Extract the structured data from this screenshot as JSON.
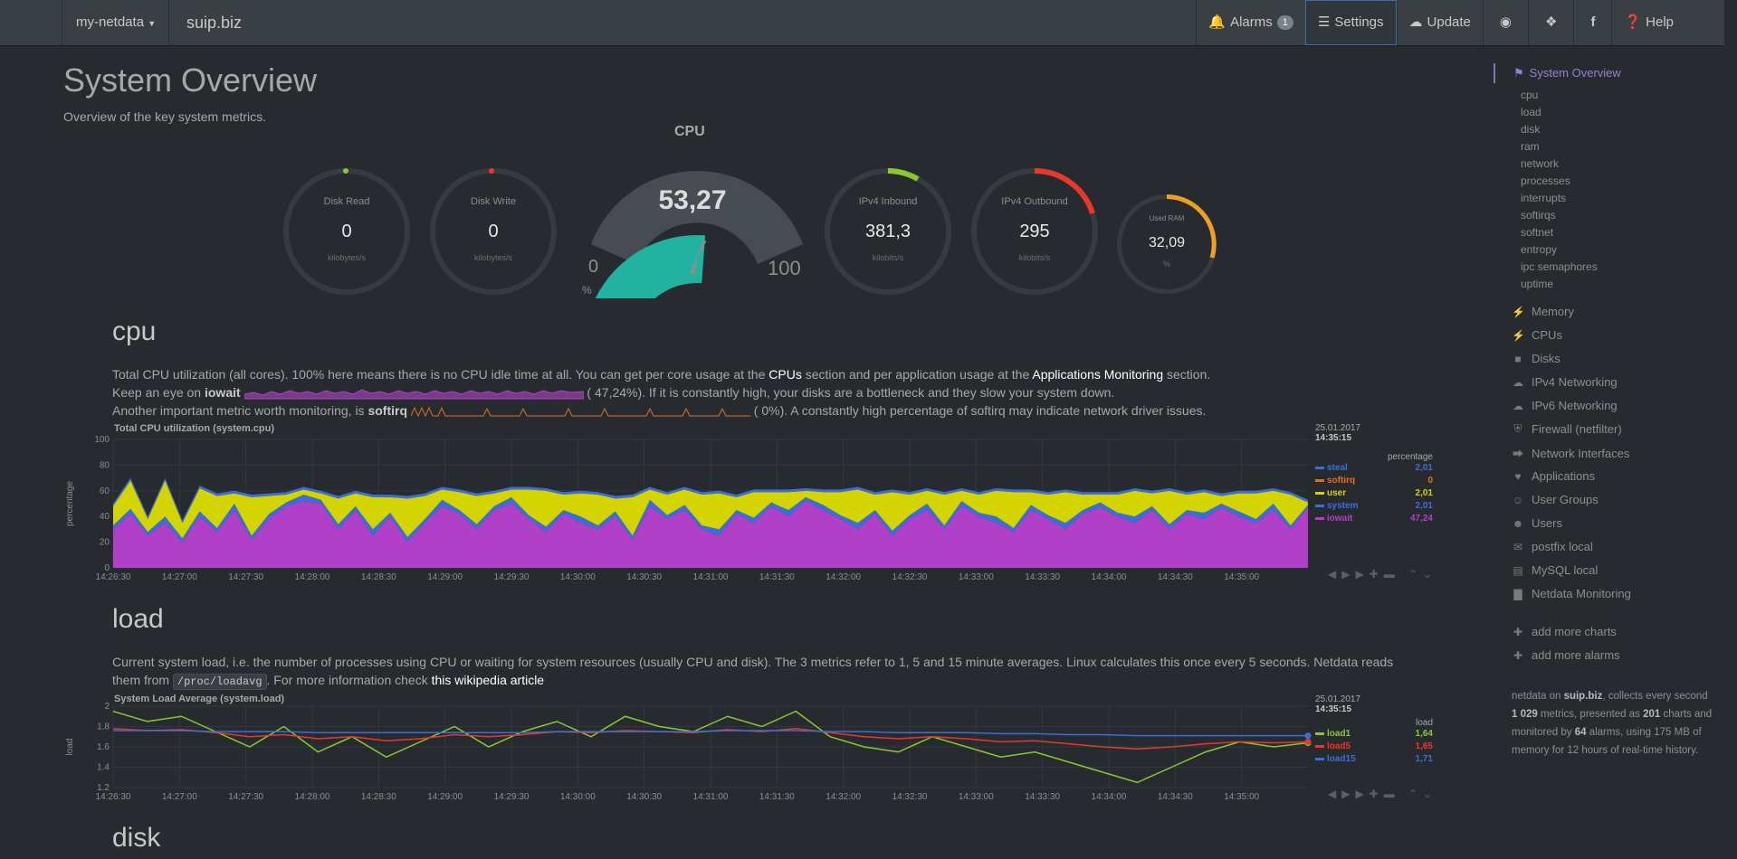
{
  "navbar": {
    "brand": "my-netdata",
    "host": "suip.biz",
    "alarms_label": "Alarms",
    "alarms_count": "1",
    "settings_label": "Settings",
    "update_label": "Update",
    "help_label": "Help"
  },
  "page": {
    "title": "System Overview",
    "subtitle": "Overview of the key system metrics."
  },
  "gauges": {
    "disk_read": {
      "label": "Disk Read",
      "value": "0",
      "unit": "kilobytes/s"
    },
    "disk_write": {
      "label": "Disk Write",
      "value": "0",
      "unit": "kilobytes/s"
    },
    "cpu": {
      "title": "CPU",
      "value": "53,27",
      "min": "0",
      "max": "100",
      "unit": "%",
      "fraction": 0.5327
    },
    "ipv4_inbound": {
      "label": "IPv4 Inbound",
      "value": "381,3",
      "unit": "kilobits/s"
    },
    "ipv4_outbound": {
      "label": "IPv4 Outbound",
      "value": "295",
      "unit": "kilobits/s"
    },
    "used_ram": {
      "label": "Used RAM",
      "value": "32,09",
      "unit": "%"
    }
  },
  "cpu_section": {
    "title": "cpu",
    "line1_a": "Total CPU utilization (all cores). 100% here means there is no CPU idle time at all. You can get per core usage at the ",
    "line1_link1": "CPUs",
    "line1_b": " section and per application usage at the ",
    "line1_link2": "Applications Monitoring",
    "line1_c": " section.",
    "line2_a": "Keep an eye on ",
    "line2_bold": "iowait",
    "line2_val": "47,24%",
    "line2_b": "). If it is constantly high, your disks are a bottleneck and they slow your system down.",
    "line3_a": "Another important metric worth monitoring, is ",
    "line3_bold": "softirq",
    "line3_val": "0%",
    "line3_b": "). A constantly high percentage of softirq may indicate network driver issues.",
    "chart_title": "Total CPU utilization (system.cpu)",
    "ylabel": "percentage",
    "date": "25.01.2017",
    "time": "14:35:15",
    "legend_unit": "percentage",
    "legend": [
      {
        "name": "steal",
        "value": "2,01",
        "color": "#3a6fd8"
      },
      {
        "name": "softirq",
        "value": "0",
        "color": "#e07020"
      },
      {
        "name": "user",
        "value": "2,01",
        "color": "#d4d400"
      },
      {
        "name": "system",
        "value": "2,01",
        "color": "#3a6fd8"
      },
      {
        "name": "iowait",
        "value": "47,24",
        "color": "#b040c8"
      }
    ]
  },
  "load_section": {
    "title": "load",
    "line1": "Current system load, i.e. the number of processes using CPU or waiting for system resources (usually CPU and disk). The 3 metrics refer to 1, 5 and 15 minute averages. Linux calculates this once every 5 seconds. Netdata reads",
    "line2_a": "them from ",
    "line2_code": "/proc/loadavg",
    "line2_b": ". For more information check ",
    "line2_link": "this wikipedia article",
    "chart_title": "System Load Average (system.load)",
    "ylabel": "load",
    "date": "25.01.2017",
    "time": "14:35:15",
    "legend_unit": "load",
    "legend": [
      {
        "name": "load1",
        "value": "1,64",
        "color": "#8ac832"
      },
      {
        "name": "load5",
        "value": "1,65",
        "color": "#e8382a"
      },
      {
        "name": "load15",
        "value": "1,71",
        "color": "#3a6fd8"
      }
    ]
  },
  "disk_section": {
    "title": "disk"
  },
  "chart_data": [
    {
      "type": "area",
      "title": "Total CPU utilization (system.cpu)",
      "ylabel": "percentage",
      "ylim": [
        0,
        100
      ],
      "yticks": [
        "100",
        "80",
        "60",
        "40",
        "20",
        "0"
      ],
      "xticks": [
        "14:26:30",
        "14:27:00",
        "14:27:30",
        "14:28:00",
        "14:28:30",
        "14:29:00",
        "14:29:30",
        "14:30:00",
        "14:30:30",
        "14:31:00",
        "14:31:30",
        "14:32:00",
        "14:32:30",
        "14:33:00",
        "14:33:30",
        "14:34:00",
        "14:34:30",
        "14:35:00"
      ],
      "series": [
        {
          "name": "iowait",
          "values": [
            30,
            42,
            25,
            35,
            20,
            40,
            28,
            45,
            22,
            38,
            48,
            52,
            50,
            30,
            45,
            25,
            40,
            20,
            35,
            48,
            42,
            30,
            45,
            50,
            38,
            28,
            42,
            35,
            30,
            40,
            22,
            48,
            38,
            45,
            30,
            25,
            42,
            35,
            48,
            40,
            52,
            45,
            38,
            30,
            42,
            25,
            38,
            45,
            30,
            48,
            40,
            35,
            28,
            45,
            38,
            30,
            42,
            47,
            40,
            35,
            45,
            30,
            42,
            38,
            47,
            40,
            35,
            45,
            30,
            47
          ]
        },
        {
          "name": "system",
          "values": [
            3,
            4,
            3,
            5,
            3,
            4,
            3,
            5,
            3,
            4,
            3,
            5,
            3,
            4,
            3,
            5,
            3,
            4,
            3,
            5,
            3,
            4,
            3,
            5,
            3,
            4,
            3,
            5,
            3,
            4,
            3,
            5,
            3,
            4,
            3,
            5,
            3,
            4,
            3,
            5,
            3,
            4,
            3,
            5,
            3,
            4,
            3,
            5,
            3,
            4,
            3,
            5,
            3,
            4,
            3,
            5,
            3,
            4,
            3,
            5,
            3,
            4,
            3,
            5,
            3,
            4,
            3,
            5,
            3,
            2
          ]
        },
        {
          "name": "user",
          "values": [
            15,
            22,
            10,
            28,
            12,
            18,
            25,
            8,
            30,
            14,
            6,
            4,
            5,
            20,
            10,
            25,
            12,
            30,
            18,
            8,
            14,
            22,
            10,
            6,
            20,
            28,
            12,
            18,
            24,
            10,
            30,
            8,
            16,
            12,
            24,
            28,
            10,
            20,
            8,
            14,
            5,
            10,
            18,
            26,
            12,
            30,
            16,
            10,
            24,
            8,
            14,
            20,
            28,
            10,
            16,
            24,
            12,
            6,
            14,
            20,
            10,
            26,
            12,
            16,
            6,
            14,
            20,
            10,
            24,
            2
          ]
        },
        {
          "name": "steal",
          "values": [
            2,
            2,
            2,
            2,
            2,
            2,
            2,
            2,
            2,
            2,
            2,
            2,
            2,
            2,
            2,
            2,
            2,
            2,
            2,
            2,
            2,
            2,
            2,
            2,
            2,
            2,
            2,
            2,
            2,
            2,
            2,
            2,
            2,
            2,
            2,
            2,
            2,
            2,
            2,
            2,
            2,
            2,
            2,
            2,
            2,
            2,
            2,
            2,
            2,
            2,
            2,
            2,
            2,
            2,
            2,
            2,
            2,
            2,
            2,
            2,
            2,
            2,
            2,
            2,
            2,
            2,
            2,
            2,
            2,
            2
          ]
        }
      ]
    },
    {
      "type": "line",
      "title": "System Load Average (system.load)",
      "ylabel": "load",
      "ylim": [
        1.2,
        2
      ],
      "yticks": [
        "2",
        "1.8",
        "1.6",
        "1.4",
        "1.2"
      ],
      "xticks": [
        "14:26:30",
        "14:27:00",
        "14:27:30",
        "14:28:00",
        "14:28:30",
        "14:29:00",
        "14:29:30",
        "14:30:00",
        "14:30:30",
        "14:31:00",
        "14:31:30",
        "14:32:00",
        "14:32:30",
        "14:33:00",
        "14:33:30",
        "14:34:00",
        "14:34:30",
        "14:35:00"
      ],
      "series": [
        {
          "name": "load1",
          "values": [
            1.95,
            1.85,
            1.9,
            1.75,
            1.6,
            1.8,
            1.55,
            1.7,
            1.5,
            1.65,
            1.8,
            1.6,
            1.75,
            1.85,
            1.7,
            1.9,
            1.8,
            1.75,
            1.9,
            1.8,
            1.95,
            1.7,
            1.6,
            1.55,
            1.7,
            1.6,
            1.5,
            1.55,
            1.45,
            1.35,
            1.25,
            1.4,
            1.55,
            1.65,
            1.6,
            1.64
          ]
        },
        {
          "name": "load5",
          "values": [
            1.78,
            1.76,
            1.77,
            1.74,
            1.7,
            1.72,
            1.68,
            1.7,
            1.66,
            1.68,
            1.72,
            1.7,
            1.72,
            1.75,
            1.74,
            1.76,
            1.75,
            1.74,
            1.77,
            1.75,
            1.78,
            1.74,
            1.7,
            1.68,
            1.7,
            1.68,
            1.65,
            1.66,
            1.63,
            1.6,
            1.58,
            1.6,
            1.63,
            1.65,
            1.64,
            1.65
          ]
        },
        {
          "name": "load15",
          "values": [
            1.76,
            1.76,
            1.76,
            1.75,
            1.75,
            1.75,
            1.74,
            1.74,
            1.74,
            1.74,
            1.74,
            1.74,
            1.74,
            1.75,
            1.75,
            1.75,
            1.75,
            1.75,
            1.76,
            1.76,
            1.76,
            1.75,
            1.75,
            1.74,
            1.74,
            1.74,
            1.73,
            1.73,
            1.72,
            1.72,
            1.71,
            1.71,
            1.71,
            1.71,
            1.71,
            1.71
          ]
        }
      ]
    }
  ],
  "sidebar": {
    "active": "System Overview",
    "sub_items": [
      "cpu",
      "load",
      "disk",
      "ram",
      "network",
      "processes",
      "interrupts",
      "softirqs",
      "softnet",
      "entropy",
      "ipc semaphores",
      "uptime"
    ],
    "items": [
      {
        "label": "Memory",
        "icon": "bolt-icon"
      },
      {
        "label": "CPUs",
        "icon": "bolt-icon"
      },
      {
        "label": "Disks",
        "icon": "folder-icon"
      },
      {
        "label": "IPv4 Networking",
        "icon": "cloud-icon"
      },
      {
        "label": "IPv6 Networking",
        "icon": "cloud-icon"
      },
      {
        "label": "Firewall (netfilter)",
        "icon": "shield-icon"
      },
      {
        "label": "Network Interfaces",
        "icon": "share-icon"
      },
      {
        "label": "Applications",
        "icon": "heartbeat-icon"
      },
      {
        "label": "User Groups",
        "icon": "users-icon"
      },
      {
        "label": "Users",
        "icon": "user-icon"
      },
      {
        "label": "postfix local",
        "icon": "envelope-icon"
      },
      {
        "label": "MySQL local",
        "icon": "database-icon"
      },
      {
        "label": "Netdata Monitoring",
        "icon": "bar-chart-icon"
      }
    ],
    "add_charts": "add more charts",
    "add_alarms": "add more alarms",
    "info": {
      "a": "netdata on ",
      "host": "suip.biz",
      "b": ", collects every second ",
      "metrics": "1 029",
      "c": " metrics, presented as ",
      "charts": "201",
      "d": " charts and monitored by ",
      "alarms": "64",
      "e": " alarms, using 175 MB of memory for 12 hours of real-time history."
    }
  }
}
